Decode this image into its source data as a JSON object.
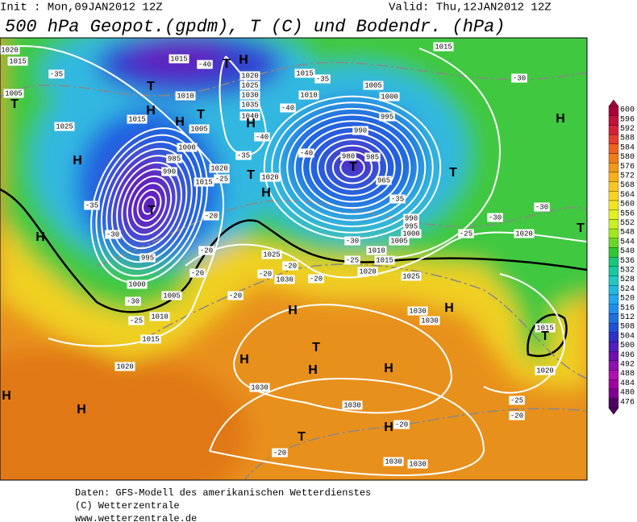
{
  "header": {
    "init": "Init : Mon,09JAN2012 12Z",
    "valid": "Valid: Thu,12JAN2012 12Z",
    "title": "500 hPa Geopot.(gpdm), T (C) und Bodendr. (hPa)"
  },
  "colorbar": {
    "levels": [
      600,
      596,
      592,
      588,
      584,
      580,
      576,
      572,
      568,
      564,
      560,
      556,
      552,
      548,
      544,
      540,
      536,
      532,
      528,
      524,
      520,
      516,
      512,
      508,
      504,
      500,
      496,
      492,
      488,
      484,
      480,
      476
    ],
    "colors": [
      "#a8003a",
      "#c4103c",
      "#d8203a",
      "#e83c2c",
      "#f06020",
      "#f07c18",
      "#f09818",
      "#f8b018",
      "#f8c420",
      "#f8d420",
      "#f0e420",
      "#e0f020",
      "#c8f020",
      "#a0e820",
      "#68d828",
      "#30c830",
      "#18c878",
      "#18c8a0",
      "#20c8c0",
      "#20b8e0",
      "#20a8f0",
      "#2090f0",
      "#2070e0",
      "#2050d8",
      "#3030c8",
      "#5020c0",
      "#7010b0",
      "#9010b0",
      "#b010b0",
      "#a000a0",
      "#800090",
      "#500060"
    ]
  },
  "map": {
    "isobar_labels": [
      "1020",
      "1015",
      "1005",
      "1025",
      "1015",
      "1010",
      "1015",
      "1020",
      "1025",
      "1030",
      "1035",
      "1040",
      "1005",
      "1000",
      "985",
      "990",
      "995",
      "1000",
      "1005",
      "1010",
      "1015",
      "1020",
      "1015",
      "1010",
      "1005",
      "1000",
      "995",
      "990",
      "980",
      "985",
      "965",
      "990",
      "995",
      "1000",
      "1005",
      "1010",
      "1015",
      "1020",
      "1025",
      "1025",
      "1030",
      "1030",
      "1030",
      "1030",
      "1030",
      "1030",
      "1030",
      "1015",
      "1020",
      "1020",
      "1020",
      "1015",
      "1020",
      "1015"
    ],
    "temperature_labels": [
      "-35",
      "-40",
      "-35",
      "-40",
      "-30",
      "-35",
      "-40",
      "-40",
      "-35",
      "-30",
      "-25",
      "-20",
      "-20",
      "-20",
      "-20",
      "-20",
      "-20",
      "-20",
      "-25",
      "-30",
      "-35",
      "-30",
      "-30",
      "-25",
      "-25",
      "-20",
      "-20",
      "-20",
      "-25",
      "-30"
    ],
    "pressure_centers": [
      "T",
      "H",
      "H",
      "T",
      "H",
      "H",
      "T",
      "T",
      "H",
      "H",
      "T",
      "H",
      "T",
      "T",
      "T",
      "H",
      "T",
      "H",
      "H",
      "T",
      "H",
      "H",
      "H",
      "H",
      "T",
      "H",
      "H",
      "T"
    ]
  },
  "footer": [
    "Daten: GFS-Modell des amerikanischen Wetterdienstes",
    "(C) Wetterzentrale",
    "www.wetterzentrale.de"
  ]
}
